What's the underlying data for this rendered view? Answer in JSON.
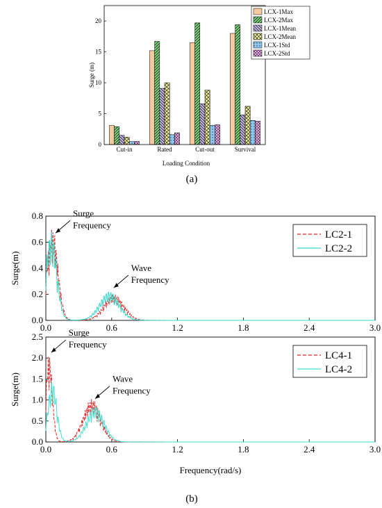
{
  "panel_a": {
    "label": "(a)",
    "chart_data": {
      "type": "bar",
      "xlabel": "Loading Condition",
      "ylabel": "Surge (m)",
      "categories": [
        "Cut-in",
        "Rated",
        "Cut-out",
        "Survival"
      ],
      "ylim": [
        0,
        22.5
      ],
      "yticks": [
        0,
        5,
        10,
        15,
        20
      ],
      "legend_position": "top-right",
      "series": [
        {
          "name": "LCX-1Max",
          "values": [
            3.1,
            15.2,
            16.5,
            18.0
          ],
          "color": "#f5c9a0",
          "pattern": "none"
        },
        {
          "name": "LCX-2Max",
          "values": [
            2.9,
            16.7,
            19.7,
            19.4
          ],
          "color": "#7fd67f",
          "pattern": "diag-right"
        },
        {
          "name": "LCX-1Mean",
          "values": [
            1.5,
            9.1,
            6.6,
            4.8
          ],
          "color": "#c8b8e8",
          "pattern": "diag-left"
        },
        {
          "name": "LCX-2Mean",
          "values": [
            1.2,
            10.0,
            8.8,
            6.2
          ],
          "color": "#f2ee9a",
          "pattern": "cross"
        },
        {
          "name": "LCX-1Std",
          "values": [
            0.5,
            1.6,
            3.1,
            3.9
          ],
          "color": "#8ec8f0",
          "pattern": "dots"
        },
        {
          "name": "LCX-2Std",
          "values": [
            0.5,
            1.9,
            3.2,
            3.8
          ],
          "color": "#e6a8e6",
          "pattern": "cross-hatch"
        }
      ]
    }
  },
  "panel_b": {
    "label": "(b)",
    "chart_data": [
      {
        "type": "line",
        "ylabel": "Surge(m)",
        "xlim": [
          0,
          3.0
        ],
        "ylim": [
          0,
          0.8
        ],
        "xticks": [
          "0.0",
          "0.6",
          "1.2",
          "1.8",
          "2.4",
          "3.0"
        ],
        "yticks": [
          "0.0",
          "0.2",
          "0.4",
          "0.6",
          "0.8"
        ],
        "legend_position": "top-right",
        "annotations": [
          {
            "line1": "Surge",
            "line2": "Frequency",
            "x": 0.07,
            "y": 0.66
          },
          {
            "line1": "Wave",
            "line2": "Frequency",
            "x": 0.6,
            "y": 0.24
          }
        ],
        "series": [
          {
            "name": "LC2-1",
            "color": "#e02020",
            "dash": "dashed",
            "peaks": [
              {
                "x": 0.06,
                "y": 0.71,
                "w": 0.05
              },
              {
                "x": 0.62,
                "y": 0.2,
                "w": 0.09
              }
            ]
          },
          {
            "name": "LC2-2",
            "color": "#30d8c8",
            "dash": "solid",
            "peaks": [
              {
                "x": 0.05,
                "y": 0.68,
                "w": 0.05
              },
              {
                "x": 0.58,
                "y": 0.22,
                "w": 0.09
              }
            ]
          }
        ]
      },
      {
        "type": "line",
        "xlabel": "Frequency(rad/s)",
        "ylabel": "Surge(m)",
        "xlim": [
          0,
          3.0
        ],
        "ylim": [
          0,
          2.5
        ],
        "xticks": [
          "0.0",
          "0.6",
          "1.2",
          "1.8",
          "2.4",
          "3.0"
        ],
        "yticks": [
          "0.0",
          "0.5",
          "1.0",
          "1.5",
          "2.0",
          "2.5"
        ],
        "legend_position": "top-right",
        "annotations": [
          {
            "line1": "Surge",
            "line2": "Frequency",
            "x": 0.03,
            "y": 2.1
          },
          {
            "line1": "Wave",
            "line2": "Frequency",
            "x": 0.43,
            "y": 1.0
          }
        ],
        "series": [
          {
            "name": "LC4-1",
            "color": "#e02020",
            "dash": "dashed",
            "peaks": [
              {
                "x": 0.03,
                "y": 2.1,
                "w": 0.03
              },
              {
                "x": 0.42,
                "y": 1.02,
                "w": 0.08
              }
            ]
          },
          {
            "name": "LC4-2",
            "color": "#40e0d0",
            "dash": "solid",
            "peaks": [
              {
                "x": 0.06,
                "y": 1.45,
                "w": 0.04
              },
              {
                "x": 0.45,
                "y": 0.85,
                "w": 0.08
              }
            ]
          }
        ]
      }
    ]
  }
}
